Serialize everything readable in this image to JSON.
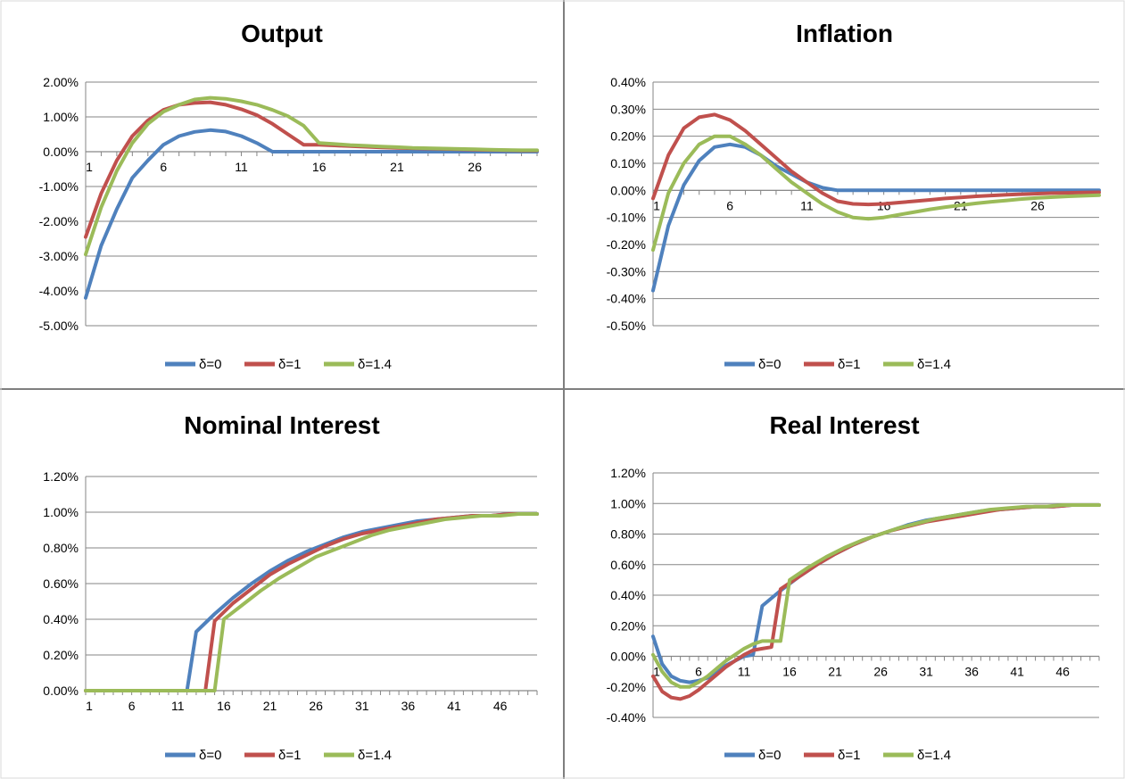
{
  "colors": {
    "d0": "#4f81bd",
    "d1": "#c0504d",
    "d14": "#9bbb59",
    "grid": "#868686",
    "divider": "#7f7f7f"
  },
  "chart_data": [
    {
      "type": "line",
      "title": "Output",
      "ylim": [
        -0.05,
        0.02
      ],
      "y_ticks": [
        "2.00%",
        "1.00%",
        "0.00%",
        "-1.00%",
        "-2.00%",
        "-3.00%",
        "-4.00%",
        "-5.00%"
      ],
      "x_ticks": [
        "1",
        "6",
        "11",
        "16",
        "21",
        "26"
      ],
      "x_range": [
        1,
        30
      ],
      "legend_position": "bottom",
      "series": [
        {
          "name": "δ=0",
          "color": "#4f81bd",
          "x": [
            1,
            2,
            3,
            4,
            5,
            6,
            7,
            8,
            9,
            10,
            11,
            12,
            13,
            14,
            15,
            16,
            17,
            18,
            19,
            20,
            21,
            22,
            23,
            24,
            25,
            26,
            27,
            28,
            29,
            30
          ],
          "y": [
            -0.042,
            -0.027,
            -0.0165,
            -0.0075,
            -0.0025,
            0.002,
            0.0045,
            0.0057,
            0.0062,
            0.0058,
            0.0045,
            0.0025,
            0,
            0,
            0,
            0,
            0,
            0,
            0,
            0,
            0,
            0,
            0,
            0,
            0,
            0,
            0,
            0,
            0,
            0
          ]
        },
        {
          "name": "δ=1",
          "color": "#c0504d",
          "x": [
            1,
            2,
            3,
            4,
            5,
            6,
            7,
            8,
            9,
            10,
            11,
            12,
            13,
            14,
            15,
            16,
            17,
            18,
            19,
            20,
            21,
            22,
            23,
            24,
            25,
            26,
            27,
            28,
            29,
            30
          ],
          "y": [
            -0.0245,
            -0.012,
            -0.0025,
            0.0045,
            0.009,
            0.012,
            0.0135,
            0.014,
            0.0142,
            0.0135,
            0.0122,
            0.0105,
            0.008,
            0.005,
            0.002,
            0.002,
            0.0018,
            0.0016,
            0.0014,
            0.0012,
            0.0011,
            0.001,
            0.0009,
            0.0008,
            0.0007,
            0.0006,
            0.0005,
            0.0004,
            0.0003,
            0.0003
          ]
        },
        {
          "name": "δ=1.4",
          "color": "#9bbb59",
          "x": [
            1,
            2,
            3,
            4,
            5,
            6,
            7,
            8,
            9,
            10,
            11,
            12,
            13,
            14,
            15,
            16,
            17,
            18,
            19,
            20,
            21,
            22,
            23,
            24,
            25,
            26,
            27,
            28,
            29,
            30
          ],
          "y": [
            -0.0295,
            -0.016,
            -0.0055,
            0.0025,
            0.008,
            0.0115,
            0.0135,
            0.015,
            0.0155,
            0.0152,
            0.0145,
            0.0135,
            0.012,
            0.0102,
            0.0075,
            0.0025,
            0.0022,
            0.0019,
            0.0017,
            0.0015,
            0.0013,
            0.0011,
            0.001,
            0.0009,
            0.0008,
            0.0007,
            0.0006,
            0.0005,
            0.0004,
            0.0004
          ]
        }
      ]
    },
    {
      "type": "line",
      "title": "Inflation",
      "ylim": [
        -0.005,
        0.004
      ],
      "y_ticks": [
        "0.40%",
        "0.30%",
        "0.20%",
        "0.10%",
        "0.00%",
        "-0.10%",
        "-0.20%",
        "-0.30%",
        "-0.40%",
        "-0.50%"
      ],
      "x_ticks": [
        "1",
        "6",
        "11",
        "16",
        "21",
        "26"
      ],
      "x_range": [
        1,
        30
      ],
      "legend_position": "bottom",
      "series": [
        {
          "name": "δ=0",
          "color": "#4f81bd",
          "x": [
            1,
            2,
            3,
            4,
            5,
            6,
            7,
            8,
            9,
            10,
            11,
            12,
            13,
            14,
            15,
            16,
            17,
            18,
            19,
            20,
            21,
            22,
            23,
            24,
            25,
            26,
            27,
            28,
            29,
            30
          ],
          "y": [
            -0.0037,
            -0.0013,
            0.0002,
            0.0011,
            0.0016,
            0.0017,
            0.0016,
            0.0013,
            0.0009,
            0.0006,
            0.0003,
            0.0001,
            0,
            0,
            0,
            0,
            0,
            0,
            0,
            0,
            0,
            0,
            0,
            0,
            0,
            0,
            0,
            0,
            0,
            0
          ]
        },
        {
          "name": "δ=1",
          "color": "#c0504d",
          "x": [
            1,
            2,
            3,
            4,
            5,
            6,
            7,
            8,
            9,
            10,
            11,
            12,
            13,
            14,
            15,
            16,
            17,
            18,
            19,
            20,
            21,
            22,
            23,
            24,
            25,
            26,
            27,
            28,
            29,
            30
          ],
          "y": [
            -0.0003,
            0.0013,
            0.0023,
            0.0027,
            0.0028,
            0.0026,
            0.0022,
            0.0017,
            0.0012,
            0.0007,
            0.0003,
            -0.0001,
            -0.0004,
            -0.0005,
            -0.00052,
            -0.0005,
            -0.00045,
            -0.0004,
            -0.00035,
            -0.0003,
            -0.00026,
            -0.00022,
            -0.00019,
            -0.00016,
            -0.00014,
            -0.00012,
            -0.0001,
            -9e-05,
            -8e-05,
            -7e-05
          ]
        },
        {
          "name": "δ=1.4",
          "color": "#9bbb59",
          "x": [
            1,
            2,
            3,
            4,
            5,
            6,
            7,
            8,
            9,
            10,
            11,
            12,
            13,
            14,
            15,
            16,
            17,
            18,
            19,
            20,
            21,
            22,
            23,
            24,
            25,
            26,
            27,
            28,
            29,
            30
          ],
          "y": [
            -0.0022,
            -0.0001,
            0.001,
            0.0017,
            0.002,
            0.002,
            0.0017,
            0.0013,
            0.0008,
            0.0003,
            -0.0001,
            -0.0005,
            -0.0008,
            -0.001,
            -0.00105,
            -0.001,
            -0.0009,
            -0.0008,
            -0.0007,
            -0.00062,
            -0.00055,
            -0.00048,
            -0.00042,
            -0.00037,
            -0.00032,
            -0.00028,
            -0.00025,
            -0.00022,
            -0.0002,
            -0.00018
          ]
        }
      ]
    },
    {
      "type": "line",
      "title": "Nominal Interest",
      "ylim": [
        0,
        0.012
      ],
      "y_ticks": [
        "1.20%",
        "1.00%",
        "0.80%",
        "0.60%",
        "0.40%",
        "0.20%",
        "0.00%"
      ],
      "x_ticks": [
        "1",
        "6",
        "11",
        "16",
        "21",
        "26",
        "31",
        "36",
        "41",
        "46"
      ],
      "x_range": [
        1,
        50
      ],
      "legend_position": "bottom",
      "series": [
        {
          "name": "δ=0",
          "color": "#4f81bd",
          "x": [
            1,
            12,
            13,
            15,
            17,
            19,
            21,
            23,
            25,
            27,
            29,
            31,
            33,
            35,
            37,
            39,
            41,
            43,
            45,
            47,
            49,
            50
          ],
          "y": [
            0,
            0,
            0.0033,
            0.0043,
            0.0052,
            0.006,
            0.0067,
            0.0073,
            0.0078,
            0.0082,
            0.0086,
            0.0089,
            0.0091,
            0.0093,
            0.0095,
            0.0096,
            0.0097,
            0.0098,
            0.0098,
            0.0099,
            0.0099,
            0.0099
          ]
        },
        {
          "name": "δ=1",
          "color": "#c0504d",
          "x": [
            1,
            14,
            15,
            17,
            19,
            21,
            23,
            25,
            27,
            29,
            31,
            33,
            35,
            37,
            39,
            41,
            43,
            45,
            47,
            49,
            50
          ],
          "y": [
            0,
            0,
            0.0039,
            0.0049,
            0.0057,
            0.0065,
            0.0071,
            0.0076,
            0.0081,
            0.0085,
            0.0088,
            0.009,
            0.0092,
            0.0094,
            0.0096,
            0.0097,
            0.0098,
            0.0098,
            0.0099,
            0.0099,
            0.0099
          ]
        },
        {
          "name": "δ=1.4",
          "color": "#9bbb59",
          "x": [
            1,
            15,
            16,
            18,
            20,
            22,
            24,
            26,
            28,
            30,
            32,
            34,
            36,
            38,
            40,
            42,
            44,
            46,
            48,
            50
          ],
          "y": [
            0,
            0,
            0.004,
            0.0048,
            0.0056,
            0.0063,
            0.0069,
            0.0075,
            0.0079,
            0.0083,
            0.0087,
            0.009,
            0.0092,
            0.0094,
            0.0096,
            0.0097,
            0.0098,
            0.0098,
            0.0099,
            0.0099
          ]
        }
      ]
    },
    {
      "type": "line",
      "title": "Real Interest",
      "ylim": [
        -0.004,
        0.012
      ],
      "y_ticks": [
        "1.20%",
        "1.00%",
        "0.80%",
        "0.60%",
        "0.40%",
        "0.20%",
        "0.00%",
        "-0.20%",
        "-0.40%"
      ],
      "x_ticks": [
        "1",
        "6",
        "11",
        "16",
        "21",
        "26",
        "31",
        "36",
        "41",
        "46"
      ],
      "x_range": [
        1,
        50
      ],
      "legend_position": "bottom",
      "series": [
        {
          "name": "δ=0",
          "color": "#4f81bd",
          "x": [
            1,
            2,
            3,
            4,
            5,
            6,
            7,
            8,
            9,
            10,
            11,
            12,
            13,
            15,
            17,
            19,
            21,
            23,
            25,
            27,
            29,
            31,
            33,
            35,
            37,
            39,
            41,
            43,
            45,
            47,
            49,
            50
          ],
          "y": [
            0.0013,
            -0.0005,
            -0.0013,
            -0.0016,
            -0.0017,
            -0.0016,
            -0.0014,
            -0.001,
            -0.0006,
            -0.0003,
            0,
            0.0001,
            0.0033,
            0.0043,
            0.0052,
            0.006,
            0.0067,
            0.0073,
            0.0078,
            0.0082,
            0.0086,
            0.0089,
            0.0091,
            0.0093,
            0.0095,
            0.0096,
            0.0097,
            0.0098,
            0.0098,
            0.0099,
            0.0099,
            0.0099
          ]
        },
        {
          "name": "δ=1",
          "color": "#c0504d",
          "x": [
            1,
            2,
            3,
            4,
            5,
            6,
            7,
            8,
            9,
            10,
            11,
            12,
            13,
            14,
            15,
            17,
            19,
            21,
            23,
            25,
            27,
            29,
            31,
            33,
            35,
            37,
            39,
            41,
            43,
            45,
            47,
            49,
            50
          ],
          "y": [
            -0.0013,
            -0.0023,
            -0.0027,
            -0.0028,
            -0.0026,
            -0.0022,
            -0.0017,
            -0.0012,
            -0.0007,
            -0.0003,
            0.0001,
            0.0004,
            0.0005,
            0.0006,
            0.0044,
            0.0052,
            0.006,
            0.0067,
            0.0073,
            0.0078,
            0.0082,
            0.0085,
            0.0088,
            0.009,
            0.0092,
            0.0094,
            0.0096,
            0.0097,
            0.0098,
            0.0098,
            0.0099,
            0.0099,
            0.0099
          ]
        },
        {
          "name": "δ=1.4",
          "color": "#9bbb59",
          "x": [
            1,
            2,
            3,
            4,
            5,
            6,
            7,
            8,
            9,
            10,
            11,
            12,
            13,
            14,
            15,
            16,
            18,
            20,
            22,
            24,
            26,
            28,
            30,
            32,
            34,
            36,
            38,
            40,
            42,
            44,
            46,
            48,
            50
          ],
          "y": [
            0.0001,
            -0.001,
            -0.0017,
            -0.002,
            -0.002,
            -0.0017,
            -0.0013,
            -0.0008,
            -0.0003,
            0.0001,
            0.0005,
            0.0008,
            0.001,
            0.001,
            0.001,
            0.005,
            0.0058,
            0.0065,
            0.0071,
            0.0076,
            0.008,
            0.0084,
            0.0087,
            0.009,
            0.0092,
            0.0094,
            0.0096,
            0.0097,
            0.0098,
            0.0098,
            0.0099,
            0.0099,
            0.0099
          ]
        }
      ]
    }
  ]
}
